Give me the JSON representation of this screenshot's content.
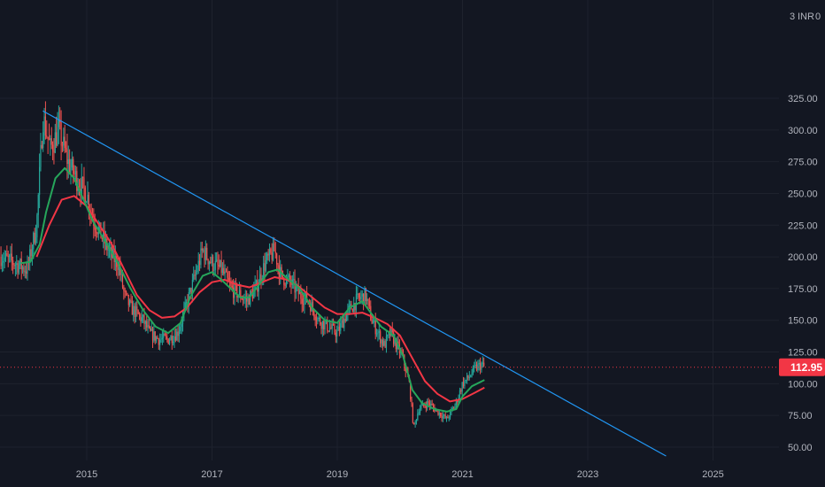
{
  "chart_data": {
    "type": "candlestick",
    "currency_label": "INR",
    "corner_left": "3",
    "corner_right": "0",
    "y_ticks": [
      50,
      75,
      100,
      125,
      150,
      175,
      200,
      225,
      250,
      275,
      300,
      325
    ],
    "y_tick_labels": [
      "50.00",
      "75.00",
      "100.00",
      "125.00",
      "150.00",
      "175.00",
      "200.00",
      "225.00",
      "250.00",
      "275.00",
      "300.00",
      "325.00"
    ],
    "x_tick_labels": [
      "2015",
      "2017",
      "2019",
      "2021",
      "2023",
      "2025"
    ],
    "x_ticks": [
      2015,
      2017,
      2019,
      2021,
      2023,
      2025
    ],
    "ylim": [
      40,
      340
    ],
    "xlim": [
      2013.63,
      2026.58
    ],
    "last_price": 112.95,
    "last_price_label": "112.95",
    "colors": {
      "up": "#26a69a",
      "down": "#ef5350",
      "ma_fast": "#26a65b",
      "ma_slow": "#f23645",
      "trendline": "#2196f3",
      "price_line": "#f23645",
      "price_tag_bg": "#f23645",
      "background": "#131722",
      "axis_text": "#b2b5be"
    },
    "trendline": {
      "x": [
        2014.3,
        2024.25
      ],
      "y": [
        315,
        43
      ]
    },
    "price_path": [
      [
        2013.63,
        200
      ],
      [
        2013.85,
        195
      ],
      [
        2014.05,
        190
      ],
      [
        2014.2,
        225
      ],
      [
        2014.3,
        310
      ],
      [
        2014.42,
        285
      ],
      [
        2014.55,
        300
      ],
      [
        2014.7,
        275
      ],
      [
        2014.85,
        260
      ],
      [
        2015.0,
        250
      ],
      [
        2015.1,
        230
      ],
      [
        2015.25,
        215
      ],
      [
        2015.4,
        200
      ],
      [
        2015.5,
        195
      ],
      [
        2015.6,
        170
      ],
      [
        2015.7,
        160
      ],
      [
        2015.8,
        155
      ],
      [
        2015.9,
        150
      ],
      [
        2016.0,
        140
      ],
      [
        2016.15,
        135
      ],
      [
        2016.3,
        135
      ],
      [
        2016.45,
        140
      ],
      [
        2016.55,
        155
      ],
      [
        2016.7,
        180
      ],
      [
        2016.85,
        205
      ],
      [
        2017.0,
        195
      ],
      [
        2017.15,
        190
      ],
      [
        2017.3,
        175
      ],
      [
        2017.45,
        170
      ],
      [
        2017.55,
        165
      ],
      [
        2017.7,
        175
      ],
      [
        2017.85,
        195
      ],
      [
        2018.0,
        205
      ],
      [
        2018.1,
        185
      ],
      [
        2018.25,
        180
      ],
      [
        2018.4,
        170
      ],
      [
        2018.55,
        165
      ],
      [
        2018.7,
        150
      ],
      [
        2018.85,
        145
      ],
      [
        2019.0,
        140
      ],
      [
        2019.15,
        155
      ],
      [
        2019.3,
        165
      ],
      [
        2019.45,
        170
      ],
      [
        2019.55,
        150
      ],
      [
        2019.65,
        140
      ],
      [
        2019.75,
        130
      ],
      [
        2019.85,
        140
      ],
      [
        2019.95,
        130
      ],
      [
        2020.05,
        120
      ],
      [
        2020.15,
        100
      ],
      [
        2020.22,
        65
      ],
      [
        2020.3,
        80
      ],
      [
        2020.45,
        85
      ],
      [
        2020.6,
        78
      ],
      [
        2020.75,
        72
      ],
      [
        2020.9,
        85
      ],
      [
        2021.0,
        100
      ],
      [
        2021.1,
        105
      ],
      [
        2021.2,
        112
      ],
      [
        2021.3,
        115
      ],
      [
        2021.35,
        112.95
      ]
    ],
    "ma_fast": [
      [
        2013.95,
        195
      ],
      [
        2014.1,
        196
      ],
      [
        2014.25,
        210
      ],
      [
        2014.35,
        235
      ],
      [
        2014.5,
        262
      ],
      [
        2014.65,
        270
      ],
      [
        2014.8,
        262
      ],
      [
        2014.95,
        245
      ],
      [
        2015.1,
        228
      ],
      [
        2015.3,
        212
      ],
      [
        2015.5,
        195
      ],
      [
        2015.7,
        175
      ],
      [
        2015.9,
        158
      ],
      [
        2016.1,
        145
      ],
      [
        2016.3,
        140
      ],
      [
        2016.5,
        148
      ],
      [
        2016.65,
        168
      ],
      [
        2016.85,
        185
      ],
      [
        2017.0,
        188
      ],
      [
        2017.15,
        182
      ],
      [
        2017.3,
        175
      ],
      [
        2017.45,
        168
      ],
      [
        2017.6,
        168
      ],
      [
        2017.75,
        178
      ],
      [
        2017.9,
        188
      ],
      [
        2018.05,
        190
      ],
      [
        2018.2,
        183
      ],
      [
        2018.4,
        175
      ],
      [
        2018.6,
        160
      ],
      [
        2018.8,
        150
      ],
      [
        2019.0,
        148
      ],
      [
        2019.2,
        160
      ],
      [
        2019.4,
        165
      ],
      [
        2019.55,
        155
      ],
      [
        2019.7,
        145
      ],
      [
        2019.9,
        138
      ],
      [
        2020.05,
        122
      ],
      [
        2020.2,
        95
      ],
      [
        2020.35,
        85
      ],
      [
        2020.55,
        80
      ],
      [
        2020.75,
        78
      ],
      [
        2020.9,
        80
      ],
      [
        2021.0,
        90
      ],
      [
        2021.15,
        98
      ],
      [
        2021.35,
        103
      ]
    ],
    "ma_slow": [
      [
        2014.2,
        200
      ],
      [
        2014.4,
        225
      ],
      [
        2014.6,
        245
      ],
      [
        2014.8,
        248
      ],
      [
        2015.0,
        240
      ],
      [
        2015.2,
        225
      ],
      [
        2015.4,
        210
      ],
      [
        2015.6,
        190
      ],
      [
        2015.8,
        170
      ],
      [
        2016.0,
        158
      ],
      [
        2016.2,
        152
      ],
      [
        2016.4,
        153
      ],
      [
        2016.6,
        160
      ],
      [
        2016.8,
        172
      ],
      [
        2017.0,
        180
      ],
      [
        2017.2,
        182
      ],
      [
        2017.4,
        178
      ],
      [
        2017.6,
        176
      ],
      [
        2017.8,
        180
      ],
      [
        2018.0,
        184
      ],
      [
        2018.2,
        182
      ],
      [
        2018.4,
        176
      ],
      [
        2018.6,
        168
      ],
      [
        2018.8,
        160
      ],
      [
        2019.0,
        155
      ],
      [
        2019.2,
        155
      ],
      [
        2019.4,
        156
      ],
      [
        2019.6,
        152
      ],
      [
        2019.8,
        147
      ],
      [
        2020.0,
        138
      ],
      [
        2020.2,
        120
      ],
      [
        2020.4,
        102
      ],
      [
        2020.6,
        92
      ],
      [
        2020.8,
        86
      ],
      [
        2021.0,
        88
      ],
      [
        2021.2,
        93
      ],
      [
        2021.35,
        97
      ]
    ]
  }
}
